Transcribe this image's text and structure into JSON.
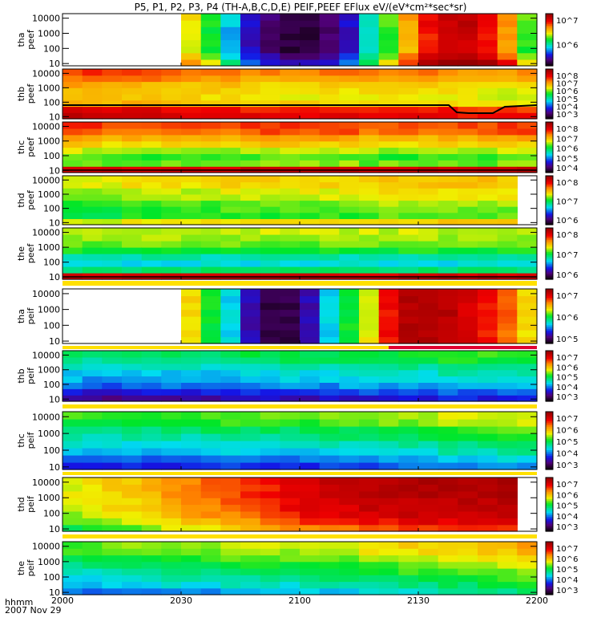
{
  "chart_data": {
    "type": "heatmap",
    "title": "P5, P1, P2, P3, P4 (TH-A,B,C,D,E) PEIF,PEEF EFlux eV/(eV*cm²*sec*sr)",
    "x_label": "hhmm",
    "date_label": "2007 Nov 29",
    "x_range": [
      "2000",
      "2200"
    ],
    "x_ticks": [
      "2000",
      "2030",
      "2100",
      "2130",
      "2200"
    ],
    "y_ticks": [
      "10",
      "100",
      "1000",
      "10000"
    ],
    "y_units": "eV (log)",
    "panels": [
      {
        "probe": "tha",
        "product": "peef",
        "cbar": [
          "10^7",
          "10^6"
        ],
        "cols": [
          null,
          null,
          null,
          null,
          null,
          null,
          0.62,
          0.5,
          0.32,
          0.16,
          0.08,
          0.04,
          0.04,
          0.08,
          0.16,
          0.36,
          0.52,
          0.7,
          0.84,
          0.9,
          0.92,
          0.86,
          0.74,
          0.52
        ],
        "egrad": [
          0.12,
          0.05,
          0,
          0,
          0,
          0,
          0.02,
          0.02
        ]
      },
      {
        "probe": "thb",
        "product": "peef",
        "cbar": [
          "10^8",
          "10^7",
          "10^6",
          "10^5",
          "10^4",
          "10^3"
        ],
        "cols": [
          0.72,
          0.72,
          0.7,
          0.7,
          0.7,
          0.68,
          0.68,
          0.68,
          0.68,
          0.66,
          0.66,
          0.66,
          0.66,
          0.66,
          0.66,
          0.66,
          0.66,
          0.66,
          0.66,
          0.66,
          0.64,
          0.64,
          0.64,
          0.64
        ],
        "egrad": [
          0.22,
          0.18,
          0,
          -0.03,
          -0.02,
          0,
          0.06,
          0.1
        ]
      },
      {
        "probe": "thc",
        "product": "peef",
        "cbar": [
          "10^8",
          "10^7",
          "10^6",
          "10^5",
          "10^4"
        ],
        "cols": [
          0.72,
          0.72,
          0.7,
          0.7,
          0.7,
          0.7,
          0.7,
          0.7,
          0.7,
          0.72,
          0.72,
          0.72,
          0.72,
          0.72,
          0.72,
          0.7,
          0.7,
          0.7,
          0.7,
          0.7,
          0.7,
          0.7,
          0.72,
          0.72
        ],
        "egrad": [
          0.2,
          -0.15,
          -0.18,
          -0.12,
          -0.05,
          0,
          0.08,
          0.1
        ]
      },
      {
        "probe": "thd",
        "product": "peef",
        "cbar": [
          "10^8",
          "10^7",
          "10^6"
        ],
        "cols": [
          0.56,
          0.56,
          0.56,
          0.58,
          0.58,
          0.58,
          0.58,
          0.58,
          0.6,
          0.6,
          0.6,
          0.6,
          0.6,
          0.6,
          0.6,
          0.6,
          0.62,
          0.62,
          0.62,
          0.62,
          0.62,
          0.62,
          0.62,
          null
        ],
        "egrad": [
          0.05,
          -0.08,
          -0.06,
          -0.04,
          0,
          0.02,
          0.06,
          0.06
        ]
      },
      {
        "probe": "the",
        "product": "peef",
        "cbar": [
          "10^8",
          "10^7",
          "10^6"
        ],
        "cols": [
          0.5,
          0.5,
          0.5,
          0.5,
          0.5,
          0.5,
          0.5,
          0.5,
          0.5,
          0.5,
          0.5,
          0.5,
          0.5,
          0.5,
          0.5,
          0.5,
          0.5,
          0.5,
          0.5,
          0.5,
          0.5,
          0.5,
          0.5,
          0.5
        ],
        "egrad": [
          0.4,
          -0.05,
          -0.14,
          -0.1,
          0,
          0.05,
          0.08,
          0.1
        ]
      },
      {
        "probe": "tha",
        "product": "peif",
        "cbar": [
          "10^7",
          "10^6",
          "10^5"
        ],
        "cols": [
          null,
          null,
          null,
          null,
          null,
          null,
          0.65,
          0.5,
          0.35,
          0.15,
          0.05,
          0.05,
          0.15,
          0.35,
          0.5,
          0.62,
          0.85,
          0.95,
          0.95,
          0.95,
          0.9,
          0.85,
          0.78,
          0.65
        ],
        "egrad": [
          0,
          0,
          0,
          0,
          0,
          0,
          0,
          0
        ]
      },
      {
        "probe": "thb",
        "product": "peif",
        "cbar": [
          "10^7",
          "10^6",
          "10^5",
          "10^4",
          "10^3"
        ],
        "cols": [
          0.32,
          0.3,
          0.3,
          0.3,
          0.32,
          0.32,
          0.32,
          0.32,
          0.32,
          0.34,
          0.34,
          0.34,
          0.34,
          0.34,
          0.36,
          0.36,
          0.36,
          0.36,
          0.36,
          0.38,
          0.38,
          0.38,
          0.38,
          0.38
        ],
        "egrad": [
          -0.18,
          -0.12,
          -0.05,
          0,
          0.02,
          0.06,
          0.12,
          0.14
        ]
      },
      {
        "probe": "thc",
        "product": "peif",
        "cbar": [
          "10^7",
          "10^6",
          "10^5",
          "10^4",
          "10^3"
        ],
        "cols": [
          0.36,
          0.36,
          0.36,
          0.36,
          0.36,
          0.36,
          0.36,
          0.38,
          0.38,
          0.38,
          0.38,
          0.38,
          0.38,
          0.4,
          0.4,
          0.4,
          0.42,
          0.42,
          0.42,
          0.44,
          0.44,
          0.44,
          0.46,
          0.46
        ],
        "egrad": [
          -0.16,
          -0.1,
          -0.04,
          0,
          0.04,
          0.08,
          0.14,
          0.16
        ]
      },
      {
        "probe": "thd",
        "product": "peif",
        "cbar": [
          "10^7",
          "10^6",
          "10^5",
          "10^4",
          "10^3"
        ],
        "cols": [
          0.6,
          0.62,
          0.64,
          0.66,
          0.68,
          0.72,
          0.74,
          0.76,
          0.78,
          0.8,
          0.82,
          0.86,
          0.88,
          0.9,
          0.9,
          0.92,
          0.92,
          0.94,
          0.94,
          0.94,
          0.94,
          0.94,
          0.94,
          null
        ],
        "egrad": [
          -0.12,
          -0.06,
          -0.02,
          0,
          0,
          0.02,
          0.02,
          0.02
        ]
      },
      {
        "probe": "the",
        "product": "peif",
        "cbar": [
          "10^7",
          "10^6",
          "10^5",
          "10^4",
          "10^3"
        ],
        "cols": [
          0.4,
          0.4,
          0.42,
          0.42,
          0.42,
          0.44,
          0.44,
          0.44,
          0.46,
          0.46,
          0.46,
          0.46,
          0.48,
          0.48,
          0.48,
          0.5,
          0.5,
          0.52,
          0.52,
          0.54,
          0.54,
          0.56,
          0.56,
          0.58
        ],
        "egrad": [
          -0.14,
          -0.08,
          -0.04,
          0,
          0.04,
          0.08,
          0.12,
          0.14
        ]
      }
    ]
  }
}
